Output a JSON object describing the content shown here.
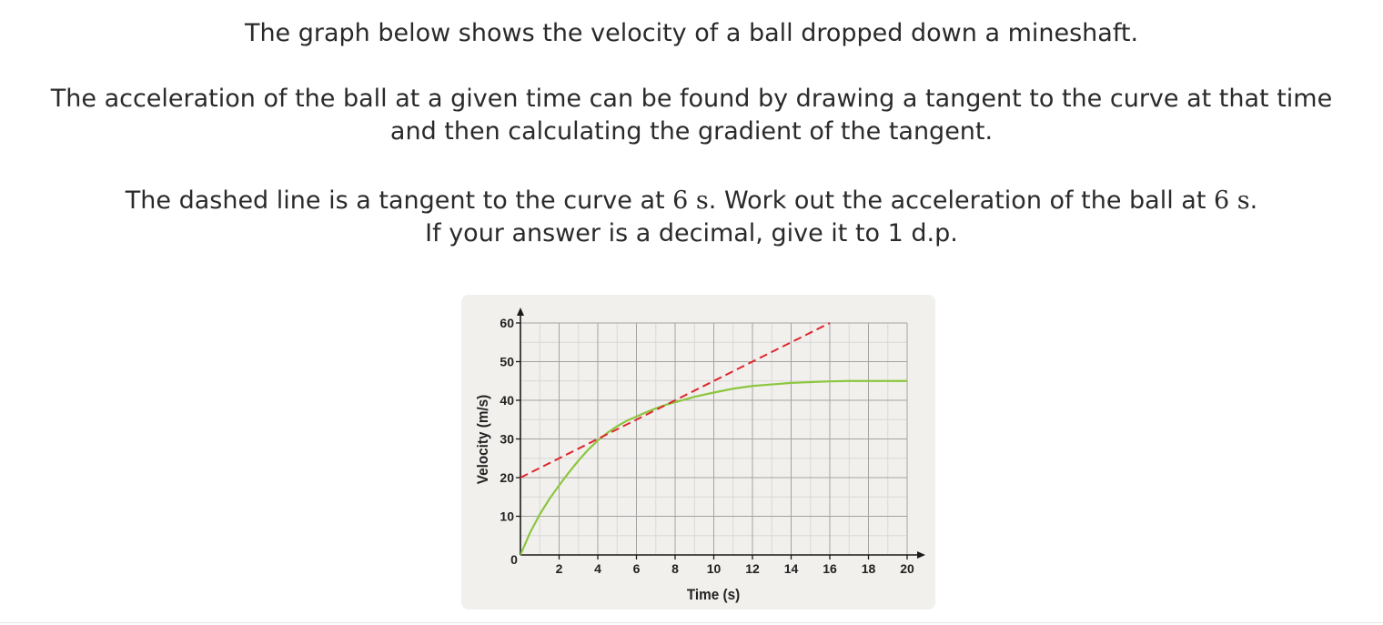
{
  "question": {
    "line1": "The graph below shows the velocity of a ball dropped down a mineshaft.",
    "line2a": "The acceleration of the ball at a given time can be found by drawing a tangent to the curve at that time",
    "line2b": "and then calculating the gradient of the tangent.",
    "line3_pre": "The dashed line is a tangent to the curve at ",
    "line3_t1": "6 s",
    "line3_mid": ". Work out the acceleration of the ball at ",
    "line3_t2": "6 s",
    "line3_post": ".",
    "line4": "If your answer is a decimal, give it to 1 d.p."
  },
  "chart_data": {
    "type": "line",
    "xlabel": "Time (s)",
    "ylabel": "Velocity (m/s)",
    "xlim": [
      0,
      20
    ],
    "ylim": [
      0,
      60
    ],
    "x_ticks": [
      2,
      4,
      6,
      8,
      10,
      12,
      14,
      16,
      18,
      20
    ],
    "y_ticks": [
      10,
      20,
      30,
      40,
      50,
      60
    ],
    "origin_label": "0",
    "grid": true,
    "series": [
      {
        "style": "solid",
        "color": "#8cc63f",
        "x": [
          0,
          0.5,
          1,
          1.5,
          2,
          2.5,
          3,
          3.5,
          4,
          4.5,
          5,
          5.5,
          6,
          6.5,
          7,
          7.5,
          8,
          9,
          10,
          11,
          12,
          13,
          14,
          15,
          16,
          17,
          18,
          19,
          20
        ],
        "y": [
          0,
          5.8,
          10.5,
          14.5,
          18,
          21.3,
          24.4,
          27.2,
          29.6,
          31.6,
          33.3,
          34.7,
          35.8,
          36.9,
          37.9,
          38.8,
          39.5,
          40.9,
          42,
          43,
          43.7,
          44.1,
          44.5,
          44.7,
          44.9,
          45,
          45,
          45,
          45
        ]
      },
      {
        "style": "dashed",
        "color": "#e1262c",
        "x": [
          0,
          16
        ],
        "y": [
          20,
          60
        ]
      }
    ]
  }
}
